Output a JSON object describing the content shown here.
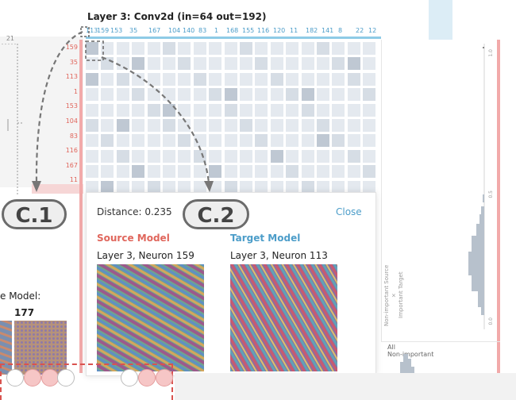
{
  "layer_title": "Layer 3: Conv2d (in=64 out=192)",
  "column_labels": [
    "113",
    "159",
    "153",
    "35",
    "167",
    "104",
    "140",
    "83",
    "1",
    "168",
    "155",
    "116",
    "120",
    "11",
    "182",
    "141",
    "8",
    "22",
    "12"
  ],
  "row_labels": [
    "159",
    "35",
    "113",
    "1",
    "153",
    "104",
    "83",
    "116",
    "167",
    "11"
  ],
  "left_fragment_number": "21",
  "popup": {
    "distance": "Distance: 0.235",
    "close_label": "Close",
    "source_title": "Source Model",
    "target_title": "Target Model",
    "source_neuron": "Layer 3, Neuron 159",
    "target_neuron": "Layer 3, Neuron 113"
  },
  "left_fragment": {
    "model_label": "e Model:",
    "neuron": "177"
  },
  "right_panel": {
    "rotated_label_line1": "Non-important Source",
    "rotated_label_x": "×",
    "rotated_label_line2": "Important Target",
    "tick_top": "1.0",
    "tick_mid": "0.5",
    "tick_bot": "0.0",
    "all_label_line1": "All",
    "all_label_line2": "Non-important"
  },
  "callouts": {
    "c1": "C.1",
    "c2": "C.2"
  },
  "colors": {
    "source": "#e0665c",
    "target": "#4c9dc9",
    "cell_base": "#e4e9ef",
    "cell_dark": "#bfc8d3"
  }
}
